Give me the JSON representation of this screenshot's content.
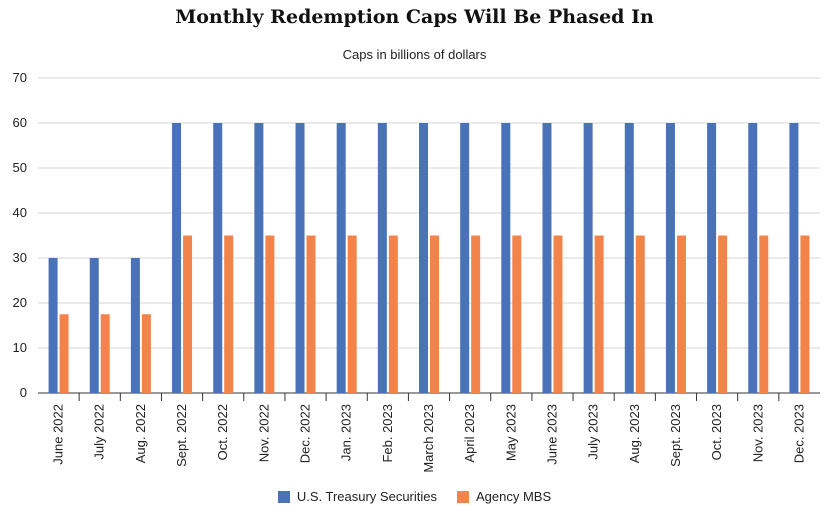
{
  "chart_data": {
    "type": "bar",
    "title": "Monthly Redemption Caps Will Be Phased In",
    "subtitle": "Caps in billions of dollars",
    "xlabel": "",
    "ylabel": "",
    "ylim": [
      0,
      70
    ],
    "yticks": [
      0,
      10,
      20,
      30,
      40,
      50,
      60,
      70
    ],
    "grid": true,
    "legend_position": "bottom",
    "categories": [
      "June 2022",
      "July 2022",
      "Aug. 2022",
      "Sept. 2022",
      "Oct. 2022",
      "Nov. 2022",
      "Dec. 2022",
      "Jan. 2023",
      "Feb. 2023",
      "March 2023",
      "April 2023",
      "May 2023",
      "June 2023",
      "July 2023",
      "Aug. 2023",
      "Sept. 2023",
      "Oct. 2023",
      "Nov. 2023",
      "Dec. 2023"
    ],
    "series": [
      {
        "name": "U.S. Treasury Securities",
        "color": "#4a72b8",
        "values": [
          30,
          30,
          30,
          60,
          60,
          60,
          60,
          60,
          60,
          60,
          60,
          60,
          60,
          60,
          60,
          60,
          60,
          60,
          60
        ]
      },
      {
        "name": "Agency MBS",
        "color": "#f2834a",
        "values": [
          17.5,
          17.5,
          17.5,
          35,
          35,
          35,
          35,
          35,
          35,
          35,
          35,
          35,
          35,
          35,
          35,
          35,
          35,
          35,
          35
        ]
      }
    ]
  }
}
